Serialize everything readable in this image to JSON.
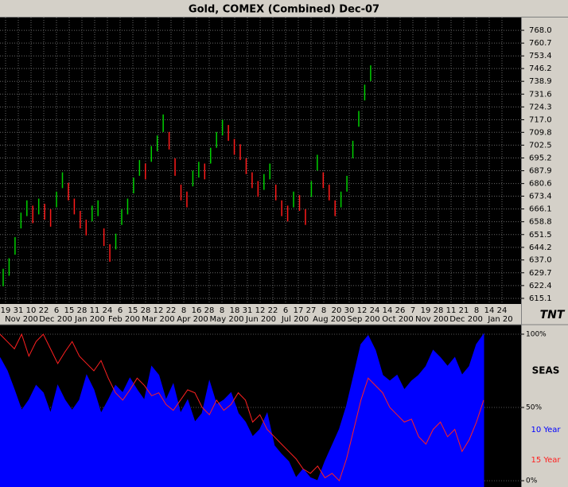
{
  "chart_data": [
    {
      "type": "ohlc",
      "title": "Gold, COMEX (Combined) Dec-07",
      "logo": "TNT",
      "up_color": "#00d000",
      "down_color": "#ff1a1a",
      "high": [
        632,
        638,
        650,
        664,
        671,
        668,
        672,
        669,
        666,
        676,
        687,
        681,
        672,
        665,
        660,
        668,
        671,
        655,
        646,
        652,
        666,
        672,
        684,
        694,
        692,
        702,
        708,
        720,
        710,
        695,
        680,
        676,
        688,
        693,
        692,
        701,
        710,
        717,
        714,
        706,
        703,
        695,
        687,
        682,
        686,
        692,
        680,
        671,
        668,
        676,
        674,
        666,
        682,
        697,
        687,
        680,
        671,
        676,
        685,
        705,
        722,
        737,
        748
      ],
      "low": [
        622,
        628,
        640,
        655,
        662,
        658,
        663,
        660,
        656,
        667,
        678,
        671,
        663,
        655,
        651,
        659,
        662,
        645,
        636,
        643,
        657,
        663,
        675,
        685,
        683,
        693,
        699,
        710,
        700,
        685,
        671,
        667,
        679,
        684,
        683,
        692,
        701,
        708,
        705,
        697,
        694,
        686,
        678,
        673,
        677,
        683,
        671,
        662,
        659,
        667,
        665,
        657,
        673,
        688,
        678,
        671,
        662,
        667,
        676,
        695,
        713,
        728,
        739
      ],
      "ylim": [
        611.9,
        775.3
      ],
      "yticks": [
        {
          "value": 768,
          "label": "768.0"
        },
        760.7,
        753.4,
        746.2,
        738.9,
        731.6,
        724.3,
        {
          "value": 717,
          "label": "717.0"
        },
        709.8,
        702.5,
        695.2,
        687.9,
        680.6,
        673.4,
        666.1,
        658.8,
        651.5,
        644.2,
        {
          "value": 637,
          "label": "637.0"
        },
        629.7,
        622.4,
        615.1
      ],
      "grid": true,
      "day_labels": [
        "19",
        "31",
        "10",
        "22",
        "6",
        "15",
        "28",
        "11",
        "24",
        "6",
        "15",
        "28",
        "12",
        "22",
        "8",
        "16",
        "28",
        "8",
        "18",
        "31",
        "12",
        "22",
        "6",
        "17",
        "27",
        "8",
        "20",
        "30",
        "12",
        "24",
        "14",
        "26",
        "7",
        "19",
        "28",
        "11",
        "21",
        "8",
        "14",
        "24"
      ],
      "month_labels": [
        "Nov 200",
        "Dec 200",
        "Jan 200",
        "Feb 200",
        "Mar 200",
        "Apr 200",
        "May 200",
        "Jun 200",
        "Jul 200",
        "Aug 200",
        "Sep 200",
        "Oct 200",
        "Nov 200",
        "Dec 200",
        "Jan 20"
      ]
    },
    {
      "type": "area",
      "title": "SEAS",
      "ylim": [
        -4.3,
        106.5
      ],
      "yticks": [
        {
          "value": 100,
          "label": "100%"
        },
        {
          "value": 50,
          "label": "50%"
        },
        {
          "value": 0,
          "label": "0%"
        }
      ],
      "series": [
        {
          "name": "10 Year",
          "color": "#0000ff",
          "style": "area",
          "values": [
            84,
            75,
            62,
            48,
            55,
            65,
            60,
            46,
            65,
            55,
            48,
            55,
            72,
            62,
            46,
            55,
            65,
            60,
            70,
            62,
            55,
            78,
            72,
            55,
            66,
            46,
            55,
            40,
            46,
            68,
            52,
            55,
            60,
            46,
            40,
            30,
            35,
            46,
            24,
            18,
            13,
            2,
            8,
            2,
            0,
            13,
            24,
            35,
            51,
            72,
            93,
            99,
            89,
            72,
            68,
            72,
            62,
            68,
            72,
            78,
            89,
            84,
            78,
            84,
            72,
            78,
            93,
            100
          ]
        },
        {
          "name": "15 Year",
          "color": "#ff2020",
          "style": "line",
          "values": [
            100,
            95,
            90,
            100,
            85,
            95,
            100,
            90,
            80,
            88,
            95,
            85,
            80,
            75,
            82,
            70,
            60,
            55,
            62,
            70,
            65,
            58,
            60,
            52,
            48,
            55,
            62,
            60,
            50,
            45,
            55,
            48,
            52,
            60,
            55,
            40,
            45,
            35,
            30,
            25,
            20,
            15,
            8,
            5,
            10,
            2,
            5,
            0,
            15,
            35,
            55,
            70,
            65,
            60,
            50,
            45,
            40,
            42,
            30,
            25,
            35,
            40,
            30,
            35,
            20,
            28,
            40,
            55
          ]
        }
      ]
    }
  ]
}
